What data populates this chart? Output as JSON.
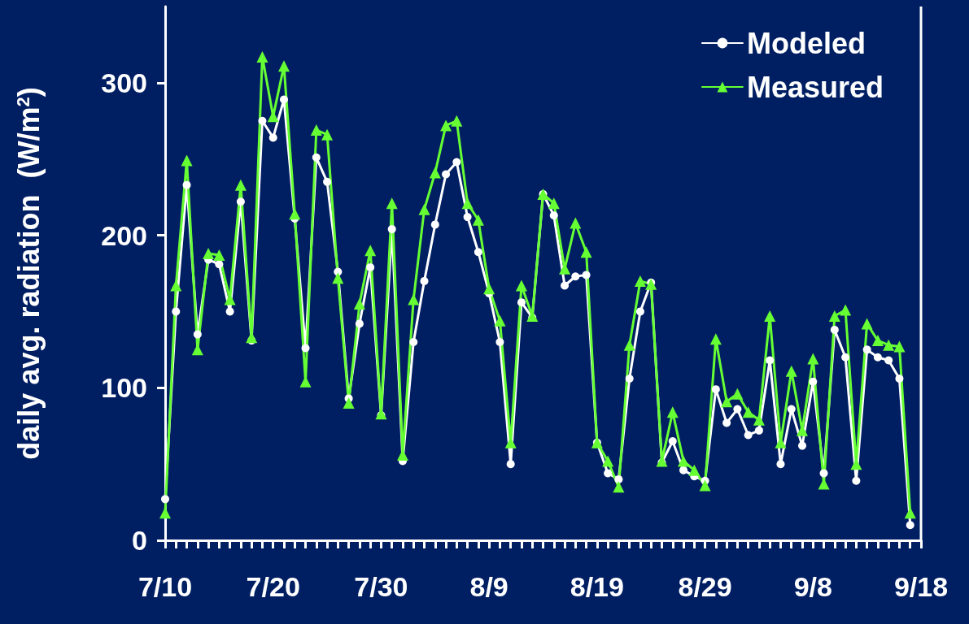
{
  "chart_data": {
    "type": "line",
    "ylabel": "daily avg. radiation  (W/m$^{2}$)",
    "x": [
      "--07-10",
      "--07-11",
      "--07-12",
      "--07-13",
      "--07-14",
      "--07-15",
      "--07-16",
      "--07-17",
      "--07-18",
      "--07-19",
      "--07-20",
      "--07-21",
      "--07-22",
      "--07-23",
      "--07-24",
      "--07-25",
      "--07-26",
      "--07-27",
      "--07-28",
      "--07-29",
      "--07-30",
      "--07-31",
      "--08-01",
      "--08-02",
      "--08-03",
      "--08-04",
      "--08-05",
      "--08-06",
      "--08-07",
      "--08-08",
      "--08-09",
      "--08-10",
      "--08-11",
      "--08-12",
      "--08-13",
      "--08-14",
      "--08-15",
      "--08-16",
      "--08-17",
      "--08-18",
      "--08-19",
      "--08-20",
      "--08-21",
      "--08-22",
      "--08-23",
      "--08-24",
      "--08-25",
      "--08-26",
      "--08-27",
      "--08-28",
      "--08-29",
      "--08-30",
      "--08-31",
      "--09-01",
      "--09-02",
      "--09-03",
      "--09-04",
      "--09-05",
      "--09-06",
      "--09-07",
      "--09-08",
      "--09-09",
      "--09-10",
      "--09-11",
      "--09-12",
      "--09-13",
      "--09-14",
      "--09-15",
      "--09-16",
      "--09-17"
    ],
    "series": [
      {
        "name": "Modeled",
        "color": "#ffffff",
        "marker": "circle",
        "values": [
          27,
          150,
          233,
          135,
          184,
          181,
          150,
          222,
          131,
          275,
          264,
          289,
          211,
          126,
          251,
          235,
          176,
          93,
          142,
          179,
          82,
          204,
          52,
          130,
          170,
          207,
          240,
          248,
          212,
          189,
          162,
          130,
          50,
          156,
          146,
          227,
          213,
          167,
          173,
          174,
          64,
          44,
          40,
          106,
          150,
          169,
          51,
          65,
          46,
          42,
          39,
          99,
          77,
          86,
          69,
          72,
          118,
          50,
          86,
          62,
          104,
          44,
          138,
          120,
          39,
          125,
          120,
          118,
          106,
          10
        ]
      },
      {
        "name": "Measured",
        "color": "#66ff33",
        "marker": "triangle",
        "values": [
          18,
          167,
          249,
          125,
          188,
          187,
          158,
          233,
          133,
          317,
          278,
          311,
          214,
          104,
          269,
          266,
          172,
          90,
          155,
          190,
          83,
          221,
          56,
          158,
          217,
          241,
          272,
          275,
          221,
          210,
          165,
          144,
          64,
          167,
          147,
          227,
          221,
          178,
          208,
          189,
          64,
          52,
          35,
          128,
          170,
          168,
          52,
          84,
          52,
          46,
          36,
          132,
          91,
          96,
          84,
          79,
          147,
          64,
          111,
          72,
          119,
          37,
          147,
          151,
          50,
          142,
          131,
          128,
          127,
          18
        ]
      }
    ],
    "xlim": [
      "--07-10",
      "--09-18"
    ],
    "xticks": [
      {
        "value": "--07-10",
        "label": "7/10"
      },
      {
        "value": "--07-20",
        "label": "7/20"
      },
      {
        "value": "--07-30",
        "label": "7/30"
      },
      {
        "value": "--08-09",
        "label": "8/9"
      },
      {
        "value": "--08-19",
        "label": "8/19"
      },
      {
        "value": "--08-29",
        "label": "8/29"
      },
      {
        "value": "--09-08",
        "label": "9/8"
      },
      {
        "value": "--09-18",
        "label": "9/18"
      }
    ],
    "ylim": [
      0,
      350
    ],
    "yticks": [
      0,
      100,
      200,
      300
    ],
    "grid": false,
    "legend": "top right"
  }
}
